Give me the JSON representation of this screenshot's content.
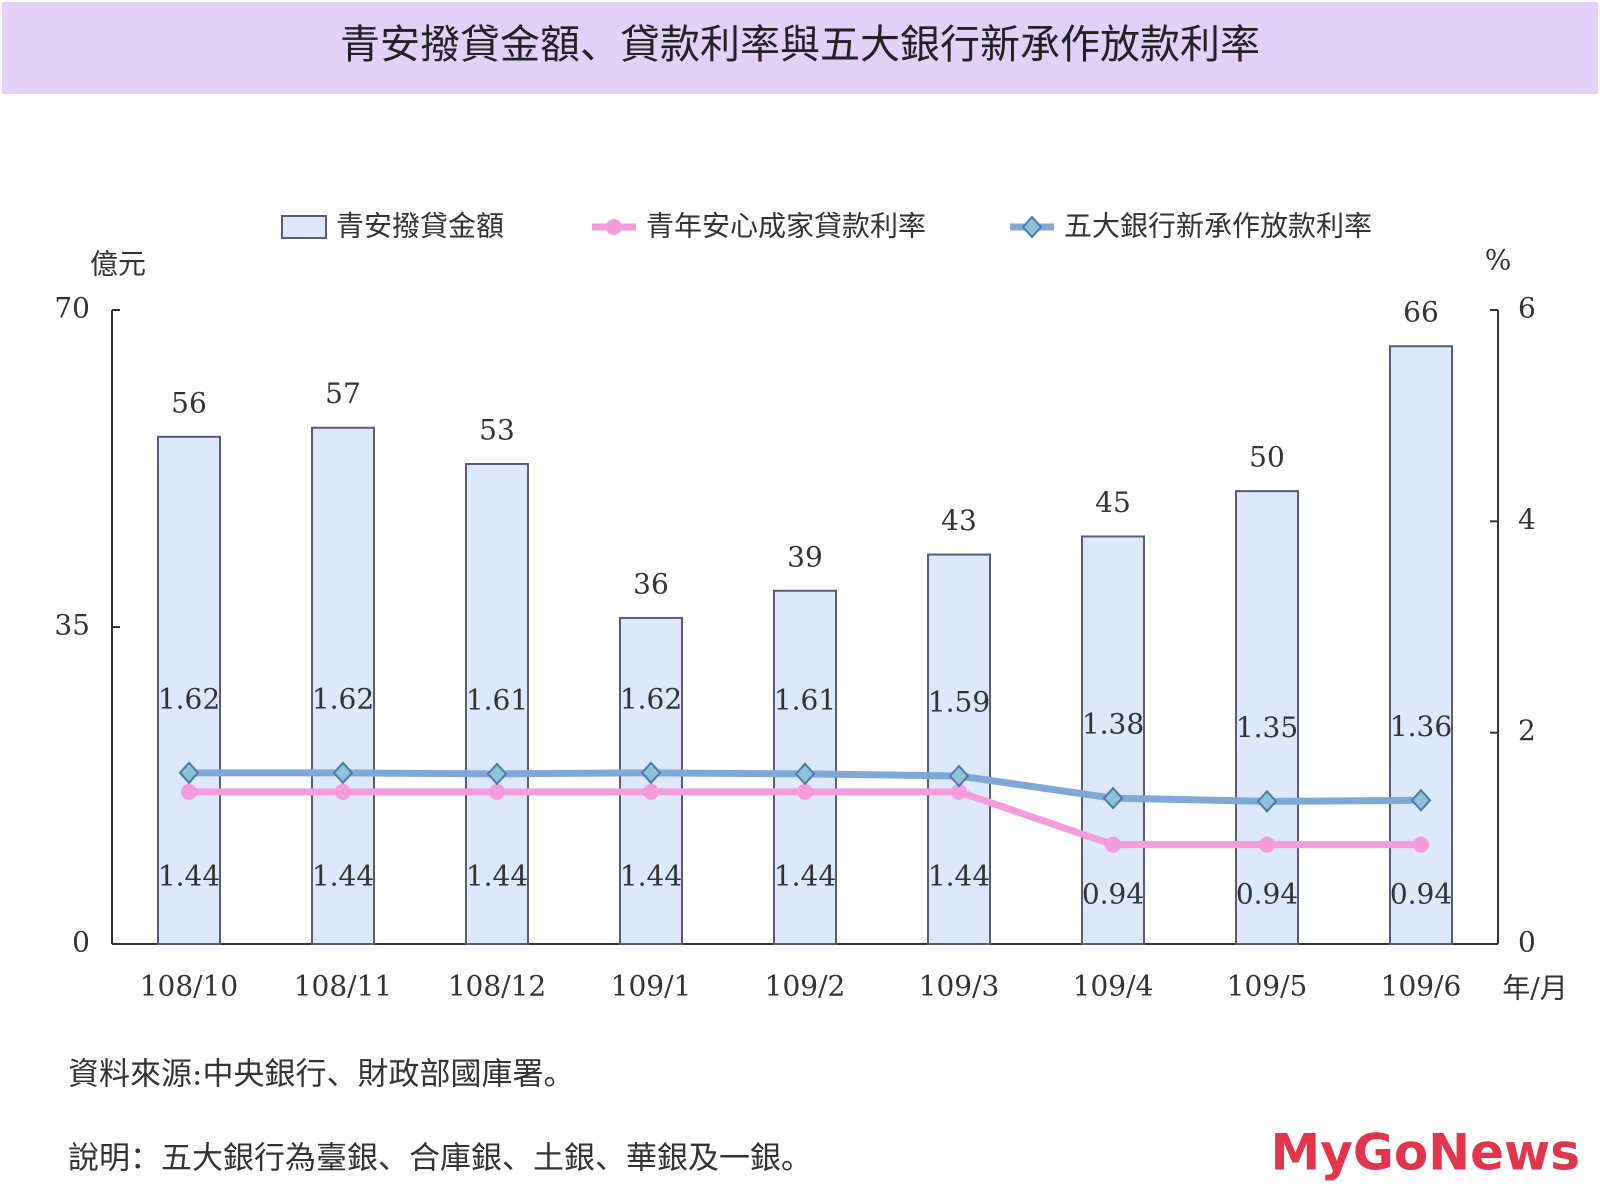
{
  "chart_data": {
    "type": "bar",
    "title": "青安撥貸金額、貸款利率與五大銀行新承作放款利率",
    "categories": [
      "108/10",
      "108/11",
      "108/12",
      "109/1",
      "109/2",
      "109/3",
      "109/4",
      "109/5",
      "109/6"
    ],
    "series": [
      {
        "name": "青安撥貸金額",
        "type": "bar",
        "color": "#dde9fb",
        "values": [
          56,
          57,
          53,
          36,
          39,
          43,
          45,
          50,
          66
        ]
      },
      {
        "name": "青年安心成家貸款利率",
        "type": "line",
        "axis": "y2",
        "color": "#f49cdc",
        "values": [
          1.44,
          1.44,
          1.44,
          1.44,
          1.44,
          1.44,
          0.94,
          0.94,
          0.94
        ]
      },
      {
        "name": "五大銀行新承作放款利率",
        "type": "line",
        "axis": "y2",
        "color": "#7fa8d6",
        "values": [
          1.62,
          1.62,
          1.61,
          1.62,
          1.61,
          1.59,
          1.38,
          1.35,
          1.36
        ]
      }
    ],
    "ylim": [
      0,
      70
    ],
    "yticks": [
      0,
      35,
      70
    ],
    "y2lim": [
      0,
      6
    ],
    "y2ticks": [
      0,
      2,
      4,
      6
    ],
    "y_label": "億元",
    "y2_label": "%",
    "x_label": "年/月"
  },
  "notes": [
    "資料來源:中央銀行、財政部國庫署。",
    "說明：五大銀行為臺銀、合庫銀、土銀、華銀及一銀。"
  ],
  "logo": "MyGoNews"
}
